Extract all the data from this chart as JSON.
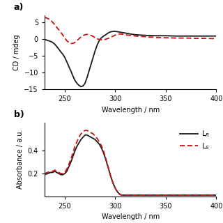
{
  "panel_a": {
    "title": "a)",
    "xlabel": "Wavelength / nm",
    "ylabel": "CD / mdeg",
    "xlim": [
      230,
      400
    ],
    "ylim": [
      -15,
      7
    ],
    "yticks": [
      -15,
      -10,
      -5,
      0,
      5
    ],
    "xticks": [
      250,
      300,
      350,
      400
    ],
    "LR": {
      "color": "#1a1a1a",
      "linewidth": 1.3,
      "x": [
        230,
        232,
        235,
        238,
        240,
        242,
        244,
        246,
        248,
        250,
        252,
        254,
        256,
        258,
        260,
        262,
        264,
        265,
        266,
        268,
        270,
        272,
        274,
        276,
        278,
        280,
        282,
        284,
        286,
        288,
        290,
        292,
        294,
        296,
        298,
        300,
        302,
        304,
        306,
        308,
        310,
        315,
        320,
        325,
        330,
        340,
        350,
        360,
        370,
        380,
        390,
        400
      ],
      "y": [
        -0.1,
        -0.3,
        -0.6,
        -1.0,
        -1.5,
        -2.2,
        -3.0,
        -3.8,
        -4.5,
        -5.5,
        -6.8,
        -8.2,
        -9.5,
        -11.0,
        -12.3,
        -13.2,
        -13.8,
        -14.0,
        -14.2,
        -14.0,
        -13.2,
        -11.5,
        -9.5,
        -7.5,
        -5.5,
        -3.5,
        -1.8,
        -0.5,
        0.3,
        0.8,
        1.2,
        1.6,
        2.0,
        2.2,
        2.3,
        2.3,
        2.2,
        2.1,
        2.0,
        1.9,
        1.8,
        1.5,
        1.3,
        1.2,
        1.1,
        1.0,
        1.0,
        0.9,
        0.9,
        0.9,
        0.9,
        0.9
      ]
    },
    "LS": {
      "color": "#cc1111",
      "linewidth": 1.3,
      "x": [
        230,
        232,
        234,
        236,
        238,
        240,
        242,
        244,
        246,
        248,
        250,
        252,
        254,
        256,
        258,
        260,
        262,
        264,
        266,
        268,
        270,
        272,
        274,
        276,
        278,
        280,
        282,
        284,
        286,
        288,
        290,
        292,
        294,
        296,
        298,
        300,
        302,
        304,
        306,
        308,
        310,
        315,
        320,
        325,
        330,
        340,
        350,
        360,
        370,
        380,
        390,
        400
      ],
      "y": [
        6.5,
        6.3,
        6.0,
        5.6,
        5.0,
        4.3,
        3.5,
        2.8,
        2.0,
        1.2,
        0.3,
        -0.5,
        -1.0,
        -1.3,
        -1.3,
        -1.0,
        -0.5,
        0.1,
        0.6,
        1.0,
        1.3,
        1.4,
        1.3,
        1.1,
        0.8,
        0.4,
        0.1,
        -0.1,
        -0.2,
        -0.2,
        -0.1,
        0.1,
        0.3,
        0.6,
        0.9,
        1.2,
        1.4,
        1.5,
        1.5,
        1.4,
        1.3,
        1.1,
        0.9,
        0.8,
        0.7,
        0.5,
        0.4,
        0.3,
        0.3,
        0.2,
        0.2,
        0.1
      ]
    }
  },
  "panel_b": {
    "title": "b)",
    "ylabel": "Absorbance / a.u.",
    "xlabel": "Wavelength / nm",
    "xlim": [
      230,
      400
    ],
    "ylim": [
      0.0,
      0.65
    ],
    "yticks": [
      0.2,
      0.4
    ],
    "xticks": [
      250,
      300,
      350,
      400
    ],
    "LR": {
      "color": "#1a1a1a",
      "linewidth": 1.3,
      "x": [
        230,
        233,
        236,
        238,
        240,
        242,
        244,
        246,
        248,
        250,
        252,
        254,
        256,
        258,
        260,
        262,
        264,
        266,
        268,
        270,
        272,
        274,
        276,
        278,
        280,
        282,
        284,
        286,
        288,
        290,
        292,
        294,
        296,
        298,
        300,
        302,
        304,
        306,
        308,
        310,
        315,
        320,
        330,
        340,
        350,
        360,
        370,
        380,
        390,
        400
      ],
      "y": [
        0.19,
        0.2,
        0.21,
        0.21,
        0.22,
        0.21,
        0.2,
        0.19,
        0.19,
        0.2,
        0.22,
        0.26,
        0.3,
        0.35,
        0.4,
        0.44,
        0.47,
        0.5,
        0.52,
        0.54,
        0.54,
        0.53,
        0.52,
        0.51,
        0.5,
        0.48,
        0.46,
        0.43,
        0.39,
        0.34,
        0.28,
        0.22,
        0.16,
        0.11,
        0.07,
        0.04,
        0.02,
        0.01,
        0.01,
        0.01,
        0.01,
        0.01,
        0.01,
        0.01,
        0.01,
        0.01,
        0.01,
        0.01,
        0.01,
        0.01
      ]
    },
    "LS": {
      "color": "#cc1111",
      "linewidth": 1.3,
      "x": [
        230,
        233,
        236,
        238,
        240,
        242,
        244,
        246,
        248,
        250,
        252,
        254,
        256,
        258,
        260,
        262,
        264,
        266,
        268,
        270,
        272,
        274,
        276,
        278,
        280,
        282,
        284,
        286,
        288,
        290,
        292,
        294,
        296,
        298,
        300,
        302,
        304,
        306,
        308,
        310,
        315,
        320,
        330,
        340,
        350,
        360,
        370,
        380,
        390,
        400
      ],
      "y": [
        0.2,
        0.21,
        0.22,
        0.22,
        0.23,
        0.22,
        0.21,
        0.2,
        0.2,
        0.21,
        0.24,
        0.28,
        0.33,
        0.38,
        0.44,
        0.48,
        0.52,
        0.55,
        0.57,
        0.58,
        0.58,
        0.57,
        0.56,
        0.55,
        0.53,
        0.51,
        0.48,
        0.45,
        0.41,
        0.35,
        0.29,
        0.22,
        0.16,
        0.11,
        0.07,
        0.04,
        0.02,
        0.01,
        0.01,
        0.01,
        0.01,
        0.01,
        0.01,
        0.01,
        0.01,
        0.01,
        0.01,
        0.01,
        0.01,
        0.01
      ]
    },
    "legend_LR": "L$_R$",
    "legend_LS": "L$_S$"
  }
}
